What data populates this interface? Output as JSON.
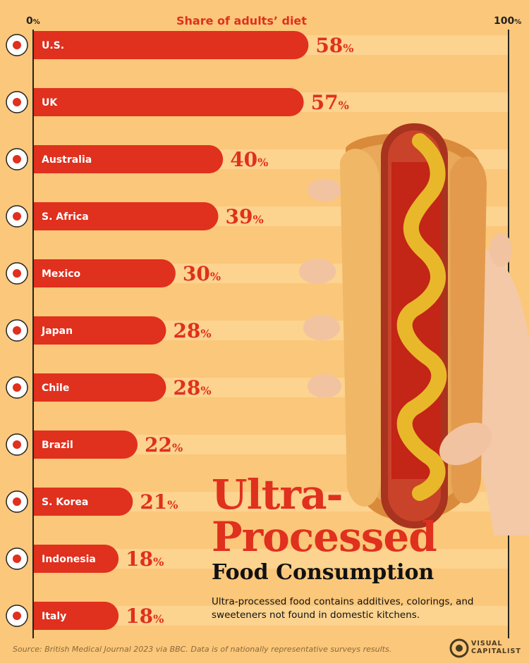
{
  "axis": {
    "min_label": "0",
    "max_label": "100",
    "percent_sign": "%",
    "title": "Share of adults’ diet"
  },
  "chart_data": {
    "type": "bar",
    "orientation": "horizontal",
    "title": "Ultra-Processed Food Consumption",
    "xlabel": "Share of adults’ diet",
    "xlim": [
      0,
      100
    ],
    "categories": [
      "U.S.",
      "UK",
      "Australia",
      "S. Africa",
      "Mexico",
      "Japan",
      "Chile",
      "Brazil",
      "S. Korea",
      "Indonesia",
      "Italy"
    ],
    "values": [
      58,
      57,
      40,
      39,
      30,
      28,
      28,
      22,
      21,
      18,
      18
    ],
    "value_labels": [
      "58",
      "57",
      "40",
      "39",
      "30",
      "28",
      "28",
      "22",
      "21",
      "18",
      "18"
    ],
    "bar_color": "#e0301e",
    "track_color": "#fcd38f",
    "value_color": "#e0301e"
  },
  "flags": [
    "us-flag-icon",
    "uk-flag-icon",
    "australia-flag-icon",
    "south-africa-flag-icon",
    "mexico-flag-icon",
    "japan-flag-icon",
    "chile-flag-icon",
    "brazil-flag-icon",
    "south-korea-flag-icon",
    "indonesia-flag-icon",
    "italy-flag-icon"
  ],
  "title": {
    "line1": "Ultra-",
    "line2": "Processed",
    "line3": "Food Consumption"
  },
  "subtitle": "Ultra-processed food contains additives, colorings, and sweeteners not found in domestic kitchens.",
  "source": "Source: British Medical Journal 2023 via BBC. Data is of nationally representative surveys results.",
  "brand": {
    "line1": "VISUAL",
    "line2": "CAPITALIST"
  },
  "colors": {
    "background": "#fbc77a",
    "accent": "#e0301e",
    "text": "#111111"
  }
}
